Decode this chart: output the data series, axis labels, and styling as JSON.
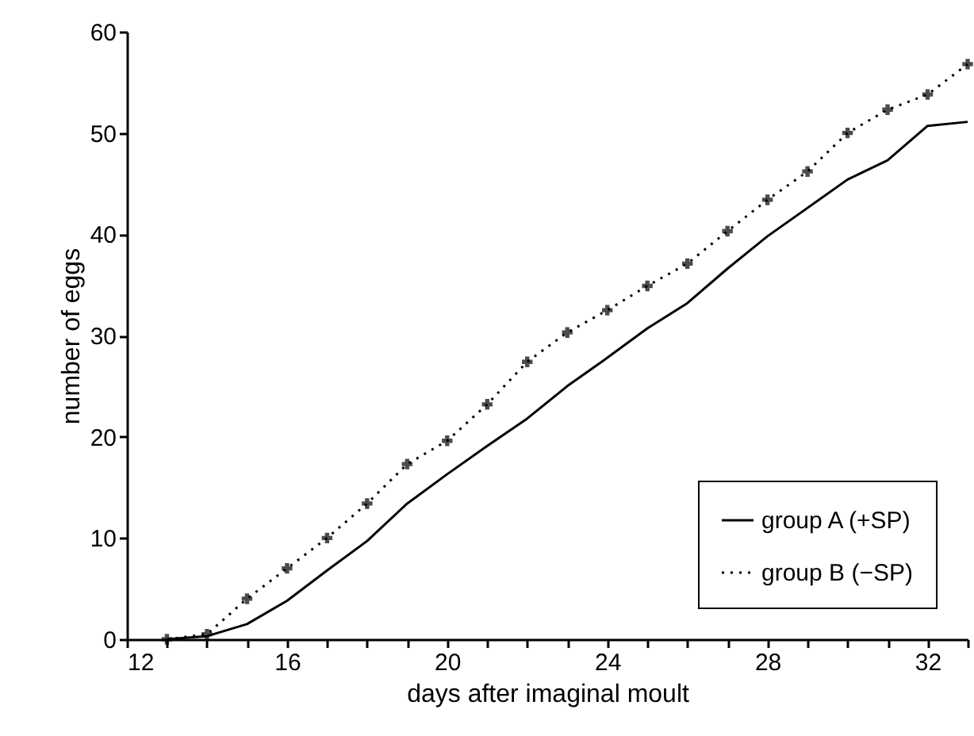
{
  "chart_data": {
    "type": "line",
    "xlabel": "days after imaginal moult",
    "ylabel": "number of eggs",
    "x": [
      13,
      14,
      15,
      16,
      17,
      18,
      19,
      20,
      21,
      22,
      23,
      24,
      25,
      26,
      27,
      28,
      29,
      30,
      31,
      32,
      33
    ],
    "series": [
      {
        "name": "group A (+SP)",
        "color": "#000000",
        "line_style": "solid",
        "marker": "none",
        "values": [
          0,
          0.3,
          1.5,
          3.8,
          6.8,
          9.7,
          13.4,
          16.3,
          19.1,
          21.8,
          25,
          27.8,
          30.7,
          33.2,
          36.6,
          39.8,
          42.6,
          45.4,
          47.3,
          50.7,
          51.1
        ]
      },
      {
        "name": "group B (−SP)",
        "color": "#000000",
        "line_style": "dotted",
        "marker": "cross",
        "values": [
          0,
          0.5,
          4,
          7,
          10,
          13.4,
          17.3,
          19.6,
          23.2,
          27.4,
          30.3,
          32.5,
          34.9,
          37.1,
          40.3,
          43.4,
          46.2,
          50,
          52.3,
          53.8,
          56.8
        ]
      }
    ],
    "xlim": [
      12,
      33
    ],
    "xticks": [
      12,
      {
        "value": 13,
        "label": null
      },
      {
        "value": 14,
        "label": null
      },
      {
        "value": 15,
        "label": null
      },
      16,
      {
        "value": 17,
        "label": null
      },
      {
        "value": 18,
        "label": null
      },
      {
        "value": 19,
        "label": null
      },
      20,
      {
        "value": 21,
        "label": null
      },
      {
        "value": 22,
        "label": null
      },
      {
        "value": 23,
        "label": null
      },
      24,
      {
        "value": 25,
        "label": null
      },
      {
        "value": 26,
        "label": null
      },
      {
        "value": 27,
        "label": null
      },
      28,
      {
        "value": 29,
        "label": null
      },
      {
        "value": 30,
        "label": null
      },
      {
        "value": 31,
        "label": null
      },
      32,
      {
        "value": 33,
        "label": null
      }
    ],
    "ylim": [
      0,
      60
    ],
    "yticks": [
      0,
      10,
      20,
      30,
      40,
      50,
      60
    ],
    "grid": false,
    "legend": "bottom right"
  }
}
